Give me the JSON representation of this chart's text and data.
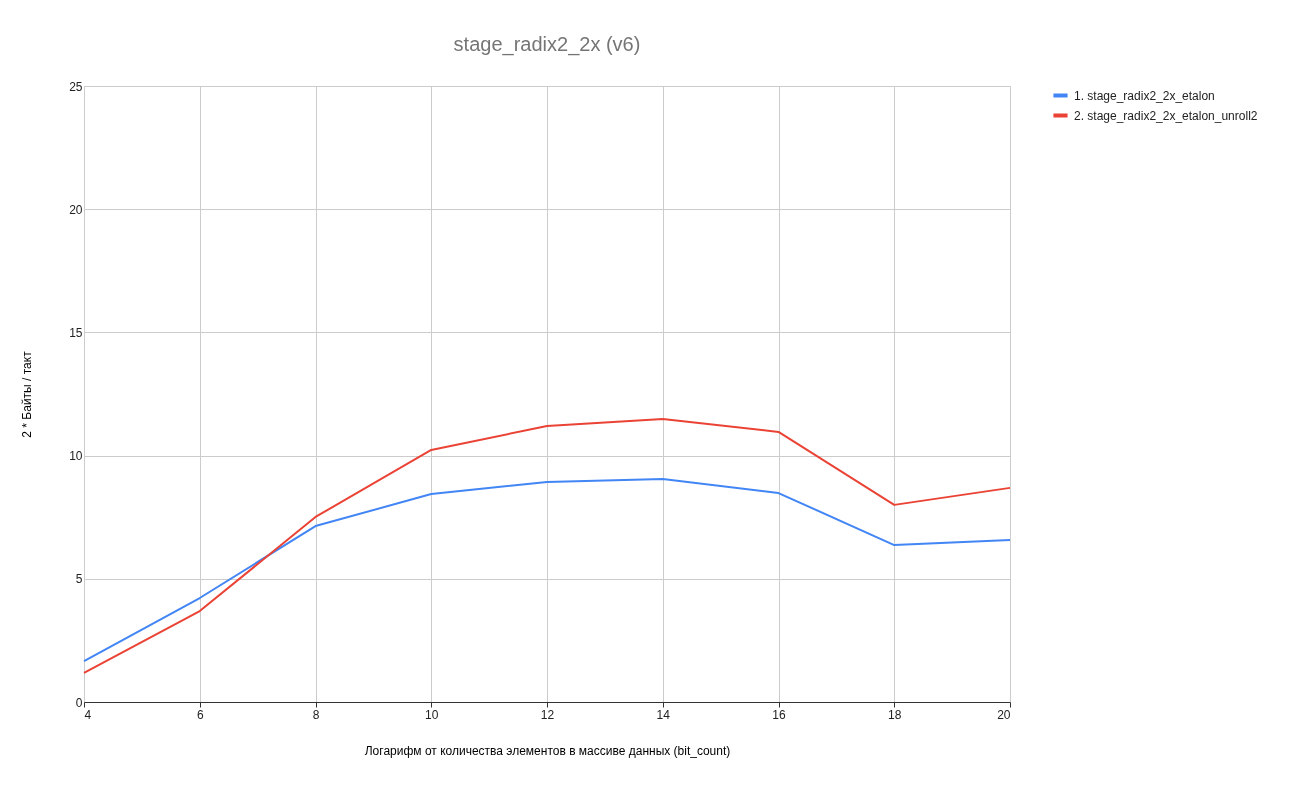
{
  "chart_data": {
    "type": "line",
    "title": "stage_radix2_2x (v6)",
    "xlabel": "Логарифм от количества элементов в массиве данных (bit_count)",
    "ylabel": "2 * Байты / такт",
    "x": [
      4,
      6,
      8,
      10,
      12,
      14,
      16,
      18,
      20
    ],
    "series": [
      {
        "name": "1. stage_radix2_2x_etalon",
        "color": "#4285f4",
        "values": [
          1.66,
          4.22,
          7.14,
          8.44,
          8.93,
          9.05,
          8.48,
          6.37,
          6.57
        ]
      },
      {
        "name": "2. stage_radix2_2x_etalon_unroll2",
        "color": "#ea4335",
        "values": [
          1.18,
          3.69,
          7.51,
          10.23,
          11.2,
          11.49,
          10.96,
          8.0,
          8.69
        ]
      }
    ],
    "xlim": [
      4,
      20
    ],
    "xticks": [
      4,
      6,
      8,
      10,
      12,
      14,
      16,
      18,
      20
    ],
    "ylim": [
      0,
      25
    ],
    "yticks": [
      0,
      5,
      10,
      15,
      20,
      25
    ],
    "grid": true,
    "legend": "top right",
    "marker": "none",
    "line_style": "solid"
  }
}
